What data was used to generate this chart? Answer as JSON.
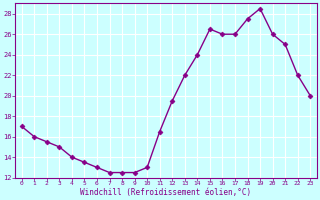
{
  "x": [
    0,
    1,
    2,
    3,
    4,
    5,
    6,
    7,
    8,
    9,
    10,
    11,
    12,
    13,
    14,
    15,
    16,
    17,
    18,
    19,
    20,
    21,
    22,
    23
  ],
  "y": [
    17,
    16,
    15.5,
    15,
    14,
    13.5,
    13,
    12.5,
    12.5,
    12.5,
    13,
    16.5,
    19.5,
    22,
    24,
    26.5,
    26,
    26,
    27.5,
    28.5,
    26,
    25,
    22,
    20
  ],
  "line_color": "#880088",
  "marker": "D",
  "marker_size": 2.5,
  "bg_color": "#ccffff",
  "grid_color": "#ffffff",
  "xlabel": "Windchill (Refroidissement éolien,°C)",
  "xlabel_color": "#880088",
  "tick_color": "#880088",
  "ylim": [
    12,
    29
  ],
  "yticks": [
    12,
    14,
    16,
    18,
    20,
    22,
    24,
    26,
    28
  ],
  "xlim": [
    -0.5,
    23.5
  ],
  "figsize": [
    3.2,
    2.0
  ],
  "dpi": 100
}
